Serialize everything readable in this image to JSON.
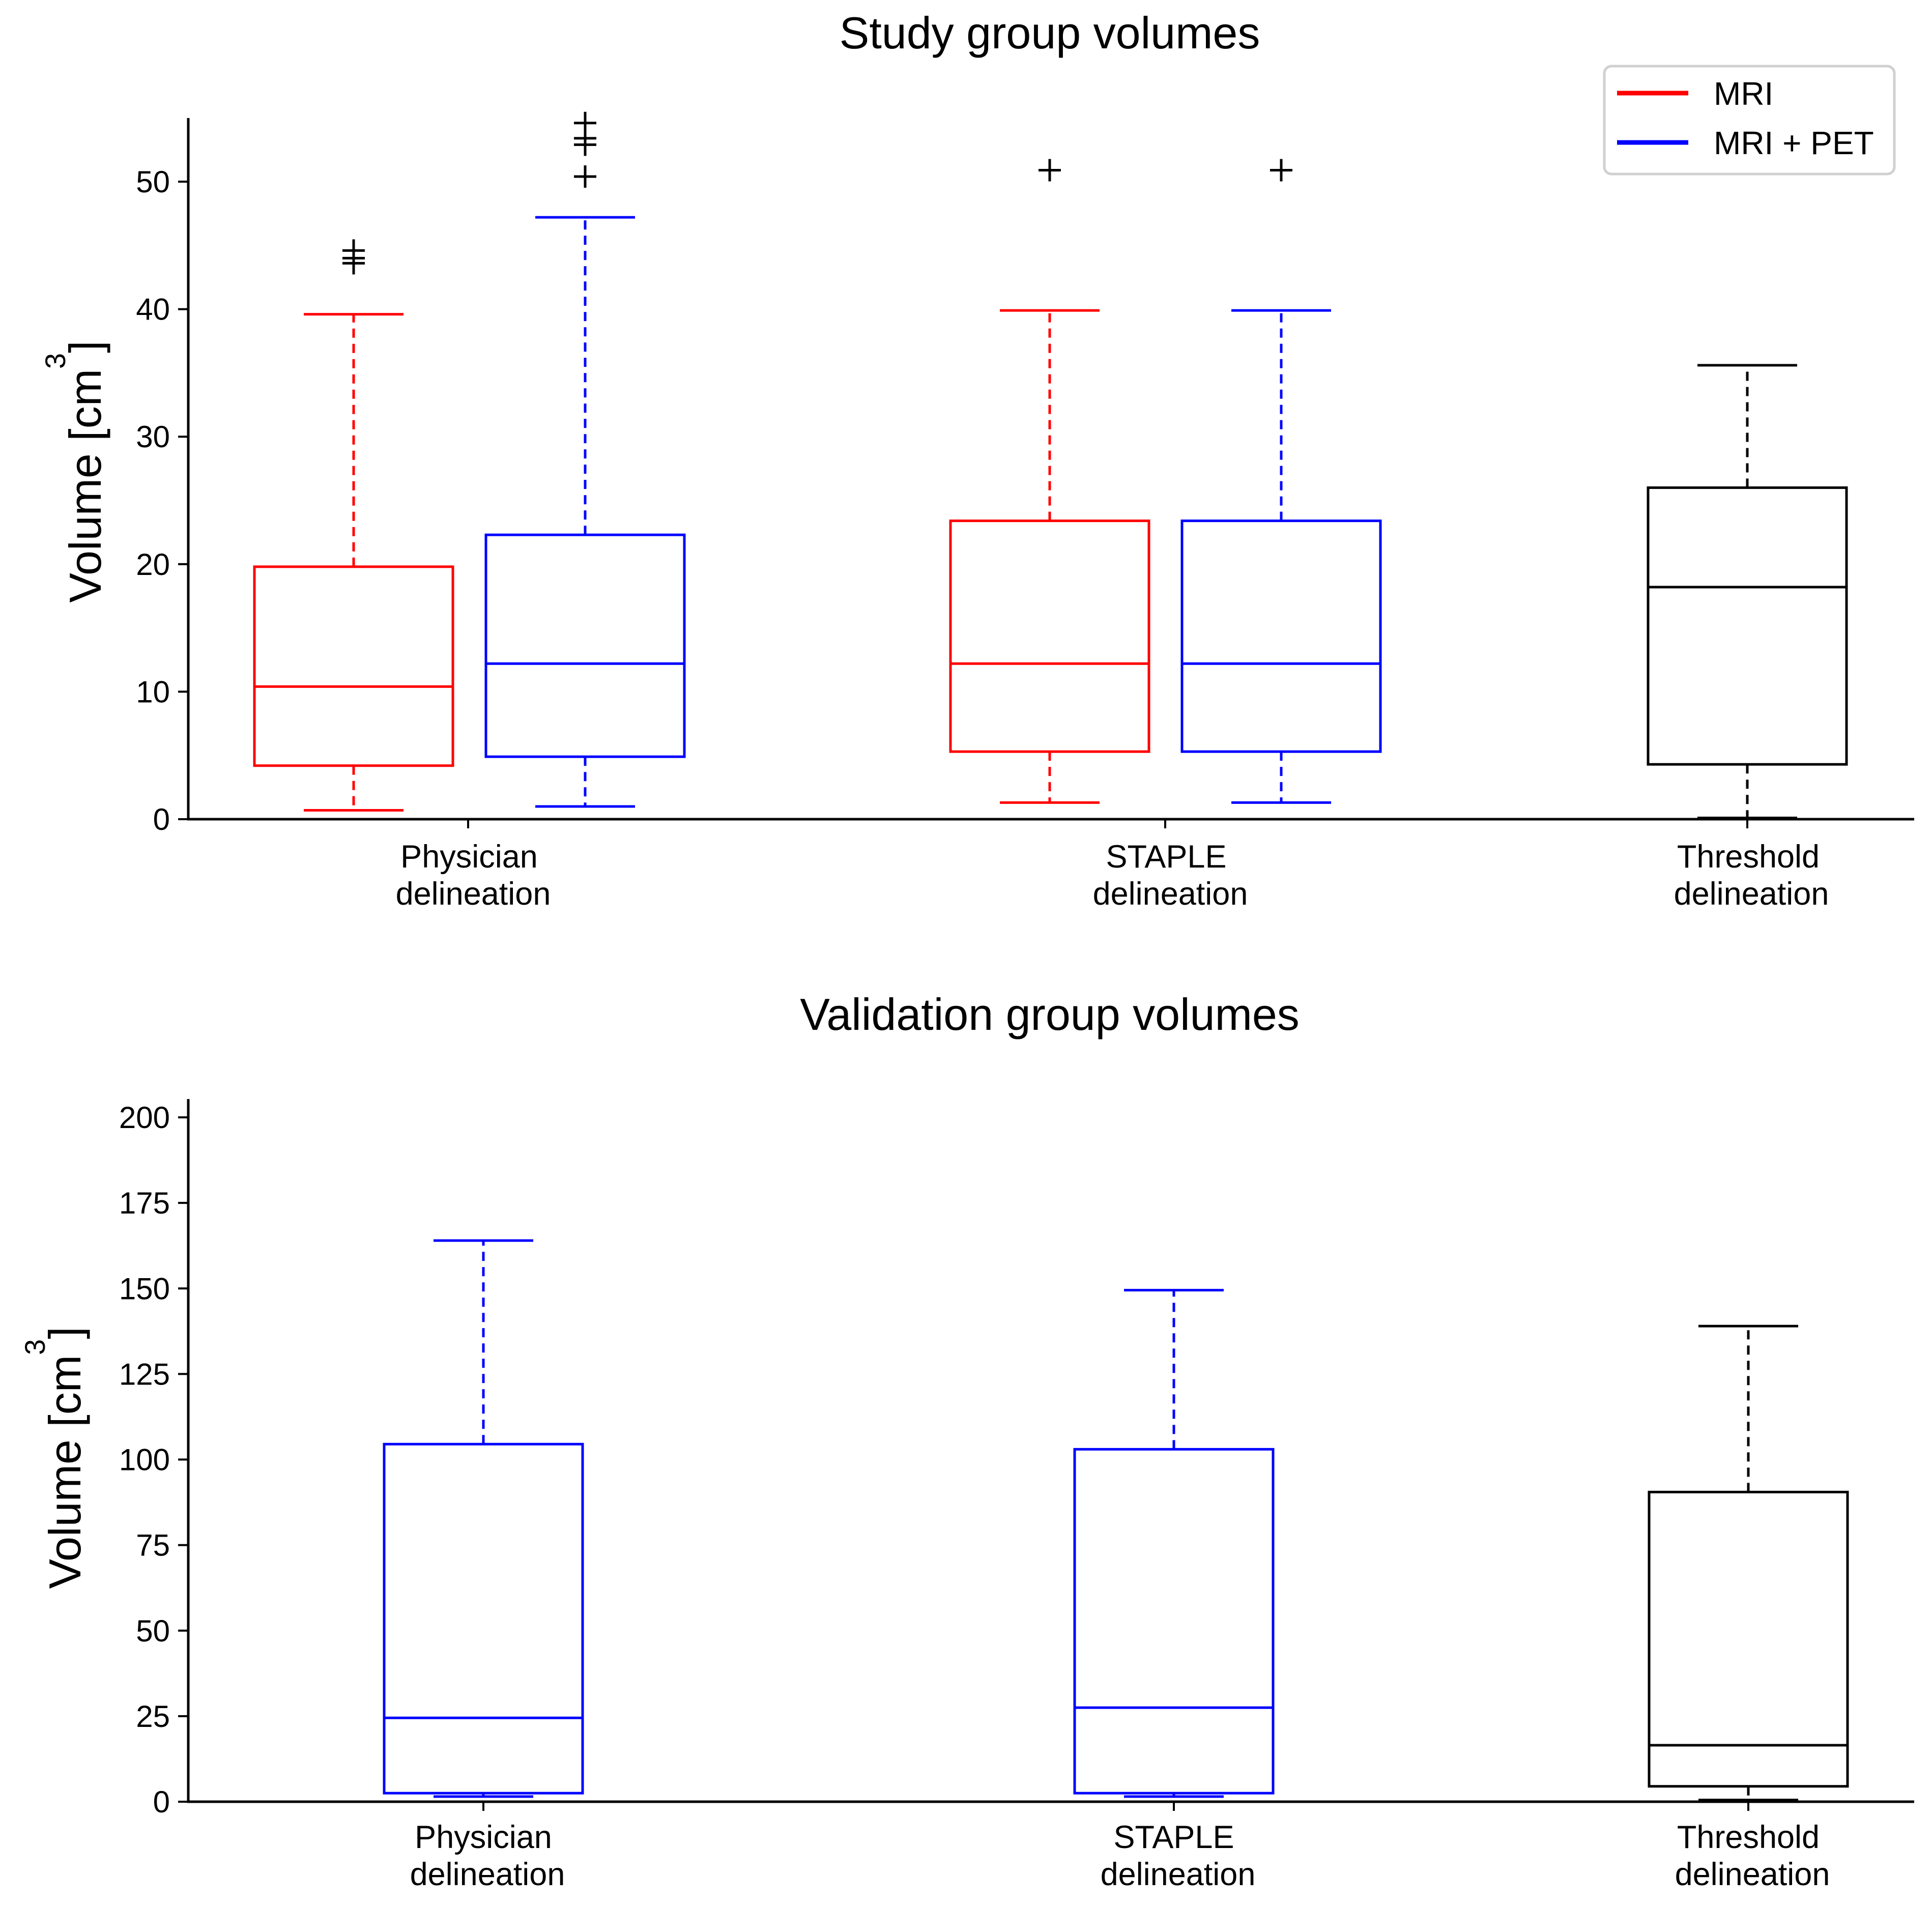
{
  "legend": {
    "items": [
      {
        "label": "MRI",
        "color": "#ff0000"
      },
      {
        "label": "MRI + PET",
        "color": "#0000ff"
      }
    ],
    "placement": "top-right"
  },
  "chart_data": [
    {
      "type": "box",
      "title": "Study group volumes",
      "ylabel": "Volume [cm",
      "ylabel_superscript": "3",
      "ylabel_suffix": "]",
      "ylim": [
        0,
        55
      ],
      "yticks": [
        0,
        10,
        20,
        30,
        40,
        50
      ],
      "categories": [
        {
          "line1": "Physician",
          "line2": "delineation"
        },
        {
          "line1": "STAPLE",
          "line2": "delineation"
        },
        {
          "line1": "Threshold",
          "line2": "delineation"
        }
      ],
      "boxes": [
        {
          "category": 0,
          "series": "MRI",
          "color": "#ff0000",
          "whisker_low": 0.7,
          "q1": 4.2,
          "median": 10.4,
          "q3": 19.8,
          "whisker_high": 39.6,
          "outliers": [
            43.6,
            44.0,
            44.6
          ]
        },
        {
          "category": 0,
          "series": "MRI + PET",
          "color": "#0000ff",
          "whisker_low": 1.0,
          "q1": 4.9,
          "median": 12.2,
          "q3": 22.3,
          "whisker_high": 47.2,
          "outliers": [
            50.4,
            52.9,
            53.4,
            54.6
          ]
        },
        {
          "category": 1,
          "series": "MRI",
          "color": "#ff0000",
          "whisker_low": 1.3,
          "q1": 5.3,
          "median": 12.2,
          "q3": 23.4,
          "whisker_high": 39.9,
          "outliers": [
            50.9
          ]
        },
        {
          "category": 1,
          "series": "MRI + PET",
          "color": "#0000ff",
          "whisker_low": 1.3,
          "q1": 5.3,
          "median": 12.2,
          "q3": 23.4,
          "whisker_high": 39.9,
          "outliers": [
            50.9
          ]
        },
        {
          "category": 2,
          "series": "",
          "color": "#000000",
          "whisker_low": 0.1,
          "q1": 4.3,
          "median": 18.2,
          "q3": 26.0,
          "whisker_high": 35.6,
          "outliers": []
        }
      ]
    },
    {
      "type": "box",
      "title": "Validation group volumes",
      "ylabel": "Volume [cm",
      "ylabel_superscript": "3",
      "ylabel_suffix": "]",
      "ylim": [
        0,
        205
      ],
      "yticks": [
        0,
        25,
        50,
        75,
        100,
        125,
        150,
        175,
        200
      ],
      "categories": [
        {
          "line1": "Physician",
          "line2": "delineation"
        },
        {
          "line1": "STAPLE",
          "line2": "delineation"
        },
        {
          "line1": "Threshold",
          "line2": "delineation"
        }
      ],
      "boxes": [
        {
          "category": 0,
          "series": "MRI + PET",
          "color": "#0000ff",
          "whisker_low": 1.5,
          "q1": 2.5,
          "median": 24.5,
          "q3": 104.5,
          "whisker_high": 164,
          "outliers": []
        },
        {
          "category": 1,
          "series": "MRI + PET",
          "color": "#0000ff",
          "whisker_low": 1.5,
          "q1": 2.5,
          "median": 27.5,
          "q3": 103,
          "whisker_high": 149.5,
          "outliers": []
        },
        {
          "category": 2,
          "series": "",
          "color": "#000000",
          "whisker_low": 0.5,
          "q1": 4.5,
          "median": 16.5,
          "q3": 90.5,
          "whisker_high": 139,
          "outliers": []
        }
      ]
    }
  ]
}
